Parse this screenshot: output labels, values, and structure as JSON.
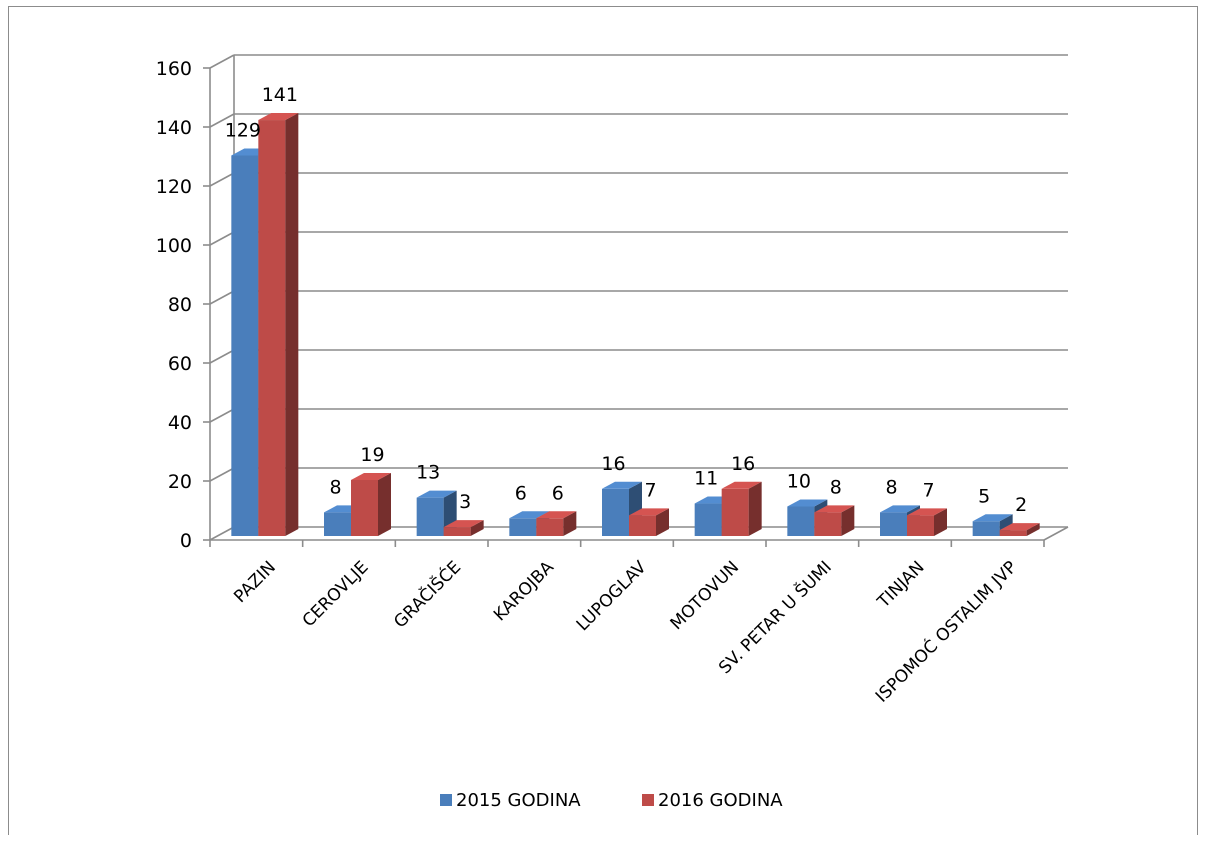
{
  "chart_data": {
    "type": "bar",
    "style": "3d-clustered-column",
    "categories": [
      "PAZIN",
      "CEROVLJE",
      "GRAČIŠĆE",
      "KAROJBA",
      "LUPOGLAV",
      "MOTOVUN",
      "SV. PETAR U ŠUMI",
      "TINJAN",
      "ISPOMOĆ OSTALIM JVP"
    ],
    "series": [
      {
        "name": "2015 GODINA",
        "color": "#4a7ebb",
        "values": [
          129,
          8,
          13,
          6,
          16,
          11,
          10,
          8,
          5
        ]
      },
      {
        "name": "2016 GODINA",
        "color": "#be4b48",
        "values": [
          141,
          19,
          3,
          6,
          7,
          16,
          8,
          7,
          2
        ]
      }
    ],
    "ylim": [
      0,
      160
    ],
    "yticks": [
      0,
      20,
      40,
      60,
      80,
      100,
      120,
      140,
      160
    ],
    "grid": true,
    "legend_position": "bottom",
    "title": "",
    "xlabel": "",
    "ylabel": ""
  }
}
